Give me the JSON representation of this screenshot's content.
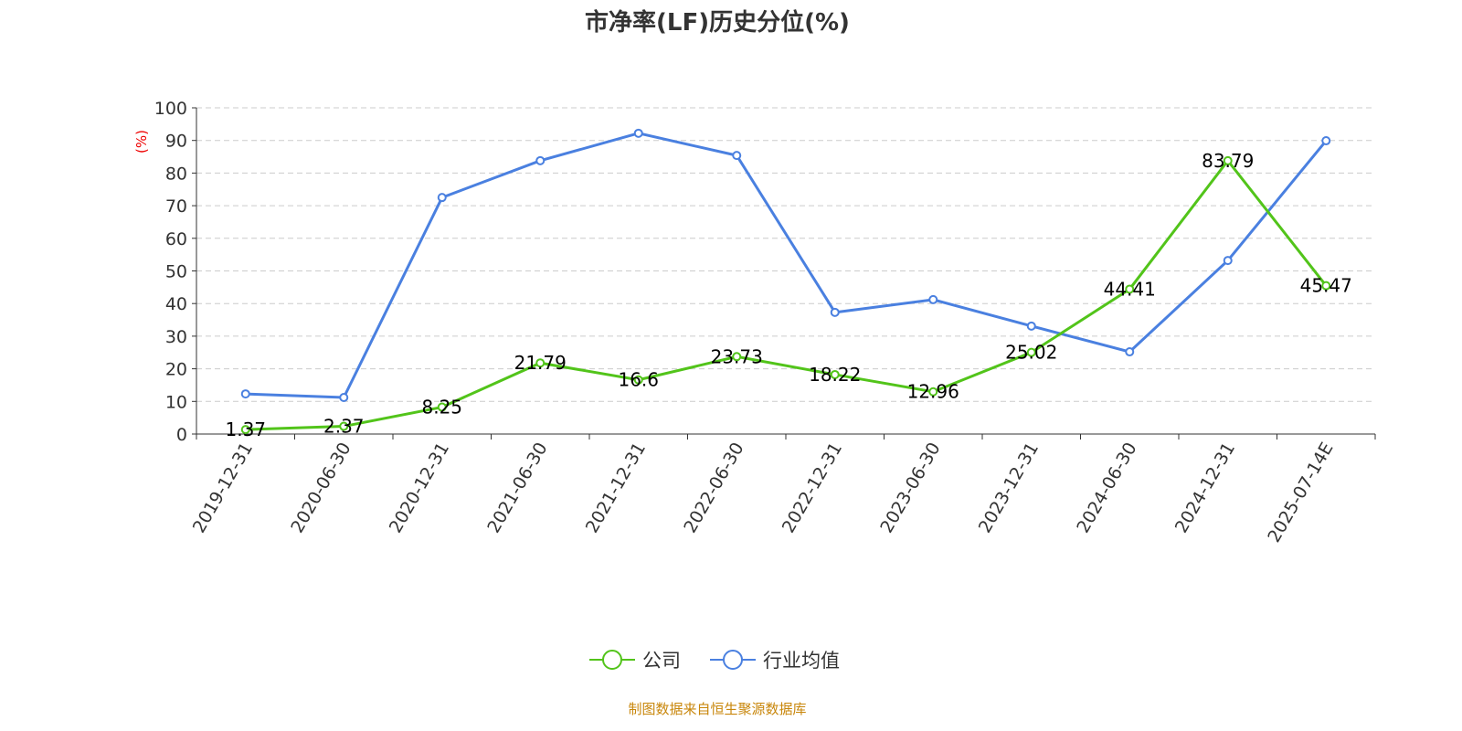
{
  "chart_data": {
    "type": "line",
    "title": "市净率(LF)历史分位(%)",
    "ylabel": "(%)",
    "ylim": [
      0,
      100
    ],
    "yticks": [
      0,
      10,
      20,
      30,
      40,
      50,
      60,
      70,
      80,
      90,
      100
    ],
    "grid": true,
    "legend_position": "bottom",
    "categories": [
      "2019-12-31",
      "2020-06-30",
      "2020-12-31",
      "2021-06-30",
      "2021-12-31",
      "2022-06-30",
      "2022-12-31",
      "2023-06-30",
      "2023-12-31",
      "2024-06-30",
      "2024-12-31",
      "2025-07-14E"
    ],
    "series": [
      {
        "name": "公司",
        "color": "#52c41a",
        "labels": true,
        "values": [
          1.37,
          2.37,
          8.25,
          21.79,
          16.6,
          23.73,
          18.22,
          12.96,
          25.02,
          44.41,
          83.79,
          45.47
        ]
      },
      {
        "name": "行业均值",
        "color": "#4a80e0",
        "labels": false,
        "values": [
          12.3,
          11.2,
          72.5,
          83.8,
          92.2,
          85.4,
          37.3,
          41.2,
          33.1,
          25.2,
          53.2,
          89.9
        ]
      }
    ]
  },
  "source": "制图数据来自恒生聚源数据库"
}
